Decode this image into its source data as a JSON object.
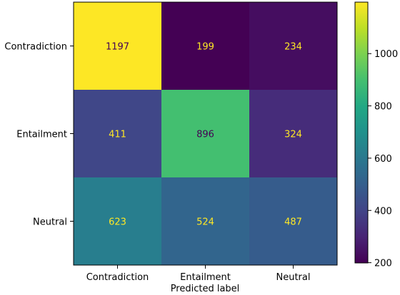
{
  "chart_data": {
    "type": "heatmap",
    "title": "",
    "xlabel": "Predicted label",
    "ylabel": "",
    "x_categories": [
      "Contradiction",
      "Entailment",
      "Neutral"
    ],
    "y_categories": [
      "Contradiction",
      "Entailment",
      "Neutral"
    ],
    "values": [
      [
        1197,
        199,
        234
      ],
      [
        411,
        896,
        324
      ],
      [
        623,
        524,
        487
      ]
    ],
    "colorbar": {
      "ticks": [
        200,
        400,
        600,
        800,
        1000
      ],
      "range": [
        199,
        1197
      ],
      "colormap": "viridis"
    },
    "grid": false
  }
}
